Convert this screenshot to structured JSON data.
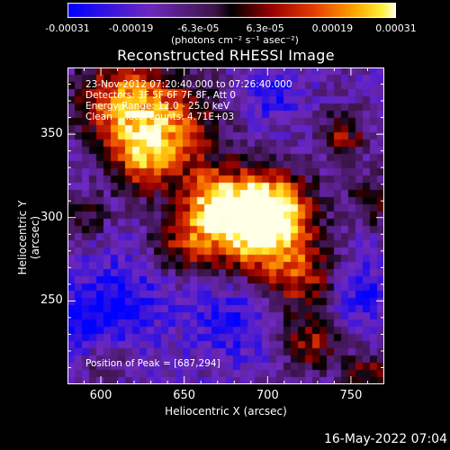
{
  "colorbar": {
    "tick_labels": [
      "-0.00031",
      "-0.00019",
      "-6.3e-05",
      "6.3e-05",
      "0.00019",
      "0.00031"
    ],
    "unit_label": "(photons cm⁻² s⁻¹ asec⁻²)",
    "range": [
      -0.00031,
      0.00031
    ]
  },
  "chart_data": {
    "type": "heatmap",
    "title": "Reconstructed RHESSI Image",
    "xlabel": "Heliocentric X (arcsec)",
    "ylabel": "Heliocentric Y (arcsec)",
    "xlim": [
      580,
      770
    ],
    "ylim": [
      200,
      390
    ],
    "xticks": [
      600,
      650,
      700,
      750
    ],
    "yticks": [
      250,
      300,
      350
    ],
    "annotations": [
      "23-Nov-2012 07:20:40.000 to 07:26:40.000",
      "Detectors: 3F 5F 6F 7F 8F, Att 0",
      "Energy Range: 12.0 - 25.0 keV",
      "Clean    Total counts: 4.71E+03"
    ],
    "peak_label": "Position of Peak = [687,294]",
    "peak": [
      687,
      294
    ]
  },
  "footer": {
    "timestamp": "16-May-2022 07:04"
  }
}
